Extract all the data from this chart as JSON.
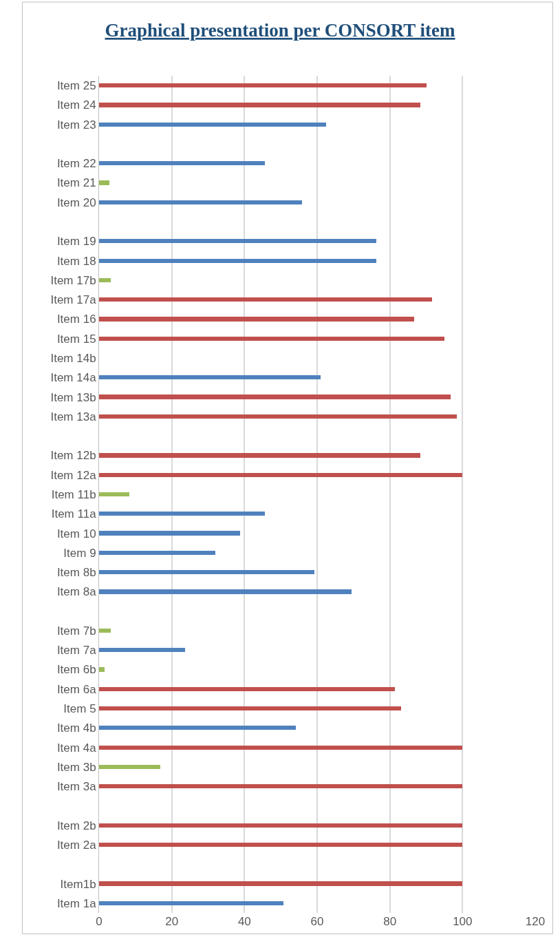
{
  "chart_data": {
    "type": "bar",
    "orientation": "horizontal",
    "title": "Graphical presentation per CONSORT item",
    "categories": [
      "Item 25",
      "Item 24",
      "Item 23",
      null,
      "Item 22",
      "Item 21",
      "Item 20",
      null,
      "Item 19",
      "Item 18",
      "Item 17b",
      "Item 17a",
      "Item 16",
      "Item 15",
      "Item 14b",
      "Item 14a",
      "Item 13b",
      "Item 13a",
      null,
      "Item 12b",
      "Item 12a",
      "Item 11b",
      "Item 11a",
      "Item 10",
      "Item 9",
      "Item 8b",
      "Item 8a",
      null,
      "Item 7b",
      "Item 7a",
      "Item 6b",
      "Item 6a",
      "Item 5",
      "Item 4b",
      "Item 4a",
      "Item 3b",
      "Item 3a",
      null,
      "Item 2b",
      "Item 2a",
      null,
      "Item1b",
      "Item 1a"
    ],
    "values": [
      90,
      88.3,
      62.5,
      null,
      45.6,
      2.8,
      55.9,
      null,
      76.3,
      76.3,
      3.2,
      91.7,
      86.6,
      95.1,
      0,
      61,
      96.8,
      98.5,
      null,
      88.3,
      100,
      8.3,
      45.6,
      38.8,
      32,
      59.3,
      69.5,
      null,
      3.2,
      23.7,
      1.5,
      81.4,
      83.1,
      54.2,
      100,
      16.9,
      100,
      null,
      100,
      100,
      null,
      100,
      50.8
    ],
    "colors": [
      "#c0504d",
      "#c0504d",
      "#4f81bd",
      "#c0504d",
      "#4f81bd",
      "#9bbb59",
      "#4f81bd",
      "#c0504d",
      "#4f81bd",
      "#4f81bd",
      "#9bbb59",
      "#c0504d",
      "#c0504d",
      "#c0504d",
      "#c0504d",
      "#4f81bd",
      "#c0504d",
      "#c0504d",
      "#c0504d",
      "#c0504d",
      "#c0504d",
      "#9bbb59",
      "#4f81bd",
      "#4f81bd",
      "#4f81bd",
      "#4f81bd",
      "#4f81bd",
      "#c0504d",
      "#9bbb59",
      "#4f81bd",
      "#9bbb59",
      "#c0504d",
      "#c0504d",
      "#4f81bd",
      "#c0504d",
      "#9bbb59",
      "#c0504d",
      "#c0504d",
      "#c0504d",
      "#c0504d",
      "#c0504d",
      "#c0504d",
      "#4f81bd"
    ],
    "xlim": [
      0,
      120
    ],
    "xticks": [
      0,
      20,
      40,
      60,
      80,
      100,
      120
    ],
    "grid": "x",
    "legend": false
  }
}
